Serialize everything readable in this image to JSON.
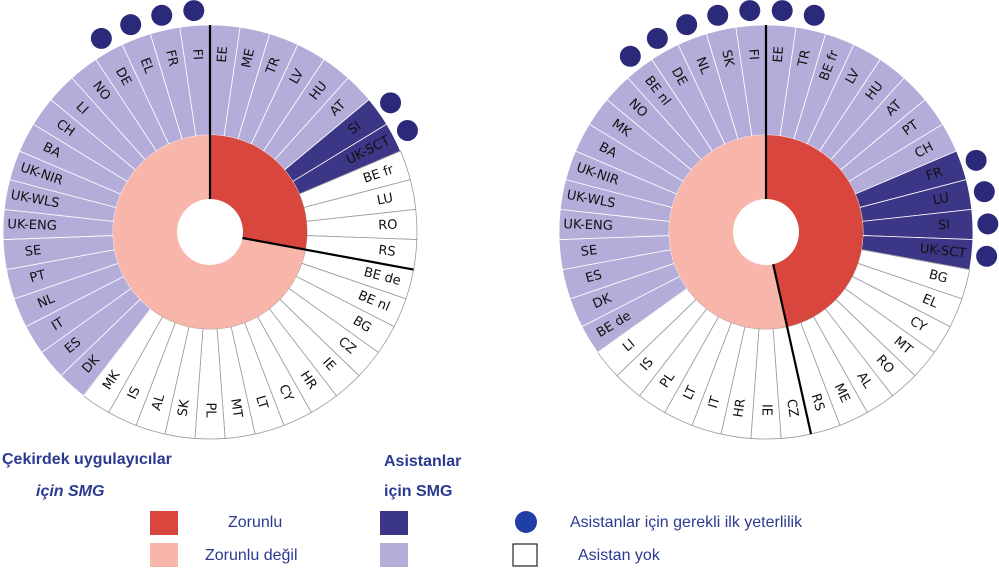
{
  "wheels": [
    {
      "split": 12,
      "inner_colors": [
        "#d9463e",
        "#f7b6a9"
      ],
      "segments": [
        {
          "label": "EE",
          "color": "#b4acd9"
        },
        {
          "label": "ME",
          "color": "#b4acd9"
        },
        {
          "label": "TR",
          "color": "#b4acd9"
        },
        {
          "label": "LV",
          "color": "#b4acd9"
        },
        {
          "label": "HU",
          "color": "#b4acd9"
        },
        {
          "label": "AT",
          "color": "#b4acd9"
        },
        {
          "label": "SI",
          "color": "#3b3685",
          "dot": true
        },
        {
          "label": "UK-SCT",
          "color": "#3b3685",
          "dot": true
        },
        {
          "label": "BE fr",
          "color": "#ffffff"
        },
        {
          "label": "LU",
          "color": "#ffffff"
        },
        {
          "label": "RO",
          "color": "#ffffff"
        },
        {
          "label": "RS",
          "color": "#ffffff"
        },
        {
          "label": "BE de",
          "color": "#ffffff"
        },
        {
          "label": "BE nl",
          "color": "#ffffff"
        },
        {
          "label": "BG",
          "color": "#ffffff"
        },
        {
          "label": "CZ",
          "color": "#ffffff"
        },
        {
          "label": "IE",
          "color": "#ffffff"
        },
        {
          "label": "HR",
          "color": "#ffffff"
        },
        {
          "label": "CY",
          "color": "#ffffff"
        },
        {
          "label": "LT",
          "color": "#ffffff"
        },
        {
          "label": "MT",
          "color": "#ffffff"
        },
        {
          "label": "PL",
          "color": "#ffffff"
        },
        {
          "label": "SK",
          "color": "#ffffff"
        },
        {
          "label": "AL",
          "color": "#ffffff"
        },
        {
          "label": "IS",
          "color": "#ffffff"
        },
        {
          "label": "MK",
          "color": "#ffffff"
        },
        {
          "label": "DK",
          "color": "#b4acd9"
        },
        {
          "label": "ES",
          "color": "#b4acd9"
        },
        {
          "label": "IT",
          "color": "#b4acd9"
        },
        {
          "label": "NL",
          "color": "#b4acd9"
        },
        {
          "label": "PT",
          "color": "#b4acd9"
        },
        {
          "label": "SE",
          "color": "#b4acd9"
        },
        {
          "label": "UK-ENG",
          "color": "#b4acd9"
        },
        {
          "label": "UK-WLS",
          "color": "#b4acd9"
        },
        {
          "label": "UK-NIR",
          "color": "#b4acd9"
        },
        {
          "label": "BA",
          "color": "#b4acd9"
        },
        {
          "label": "CH",
          "color": "#b4acd9"
        },
        {
          "label": "LI",
          "color": "#b4acd9"
        },
        {
          "label": "NO",
          "color": "#b4acd9"
        },
        {
          "label": "DE",
          "color": "#b4acd9",
          "dot": true
        },
        {
          "label": "EL",
          "color": "#b4acd9",
          "dot": true
        },
        {
          "label": "FR",
          "color": "#b4acd9",
          "dot": true
        },
        {
          "label": "FI",
          "color": "#b4acd9",
          "dot": true
        }
      ]
    },
    {
      "split": 20,
      "inner_colors": [
        "#d9463e",
        "#f7b6a9"
      ],
      "segments": [
        {
          "label": "EE",
          "color": "#b4acd9",
          "dot": true
        },
        {
          "label": "TR",
          "color": "#b4acd9",
          "dot": true
        },
        {
          "label": "BE fr",
          "color": "#b4acd9"
        },
        {
          "label": "LV",
          "color": "#b4acd9"
        },
        {
          "label": "HU",
          "color": "#b4acd9"
        },
        {
          "label": "AT",
          "color": "#b4acd9"
        },
        {
          "label": "PT",
          "color": "#b4acd9"
        },
        {
          "label": "CH",
          "color": "#b4acd9"
        },
        {
          "label": "FR",
          "color": "#3b3685",
          "dot": true
        },
        {
          "label": "LU",
          "color": "#3b3685",
          "dot": true
        },
        {
          "label": "SI",
          "color": "#3b3685",
          "dot": true
        },
        {
          "label": "UK-SCT",
          "color": "#3b3685",
          "dot": true
        },
        {
          "label": "BG",
          "color": "#ffffff"
        },
        {
          "label": "EL",
          "color": "#ffffff"
        },
        {
          "label": "CY",
          "color": "#ffffff"
        },
        {
          "label": "MT",
          "color": "#ffffff"
        },
        {
          "label": "RO",
          "color": "#ffffff"
        },
        {
          "label": "AL",
          "color": "#ffffff"
        },
        {
          "label": "ME",
          "color": "#ffffff"
        },
        {
          "label": "RS",
          "color": "#ffffff"
        },
        {
          "label": "CZ",
          "color": "#ffffff"
        },
        {
          "label": "IE",
          "color": "#ffffff"
        },
        {
          "label": "HR",
          "color": "#ffffff"
        },
        {
          "label": "IT",
          "color": "#ffffff"
        },
        {
          "label": "LT",
          "color": "#ffffff"
        },
        {
          "label": "PL",
          "color": "#ffffff"
        },
        {
          "label": "IS",
          "color": "#ffffff"
        },
        {
          "label": "LI",
          "color": "#ffffff"
        },
        {
          "label": "BE de",
          "color": "#b4acd9"
        },
        {
          "label": "DK",
          "color": "#b4acd9"
        },
        {
          "label": "ES",
          "color": "#b4acd9"
        },
        {
          "label": "SE",
          "color": "#b4acd9"
        },
        {
          "label": "UK-ENG",
          "color": "#b4acd9"
        },
        {
          "label": "UK-WLS",
          "color": "#b4acd9"
        },
        {
          "label": "UK-NIR",
          "color": "#b4acd9"
        },
        {
          "label": "BA",
          "color": "#b4acd9"
        },
        {
          "label": "MK",
          "color": "#b4acd9"
        },
        {
          "label": "NO",
          "color": "#b4acd9"
        },
        {
          "label": "BE nl",
          "color": "#b4acd9",
          "dot": true
        },
        {
          "label": "DE",
          "color": "#b4acd9",
          "dot": true
        },
        {
          "label": "NL",
          "color": "#b4acd9",
          "dot": true
        },
        {
          "label": "SK",
          "color": "#b4acd9",
          "dot": true
        },
        {
          "label": "FI",
          "color": "#b4acd9",
          "dot": true
        }
      ]
    }
  ],
  "legend": {
    "core_title": [
      "Çekirdek uygulayıcılar",
      "için SMG"
    ],
    "assistant_title": [
      "Asistanlar",
      "için SMG"
    ],
    "required": "Zorunlu",
    "not_required": "Zorunlu değil",
    "dot": "Asistanlar için gerekli ilk yeterlilik",
    "none": "Asistan yok"
  }
}
